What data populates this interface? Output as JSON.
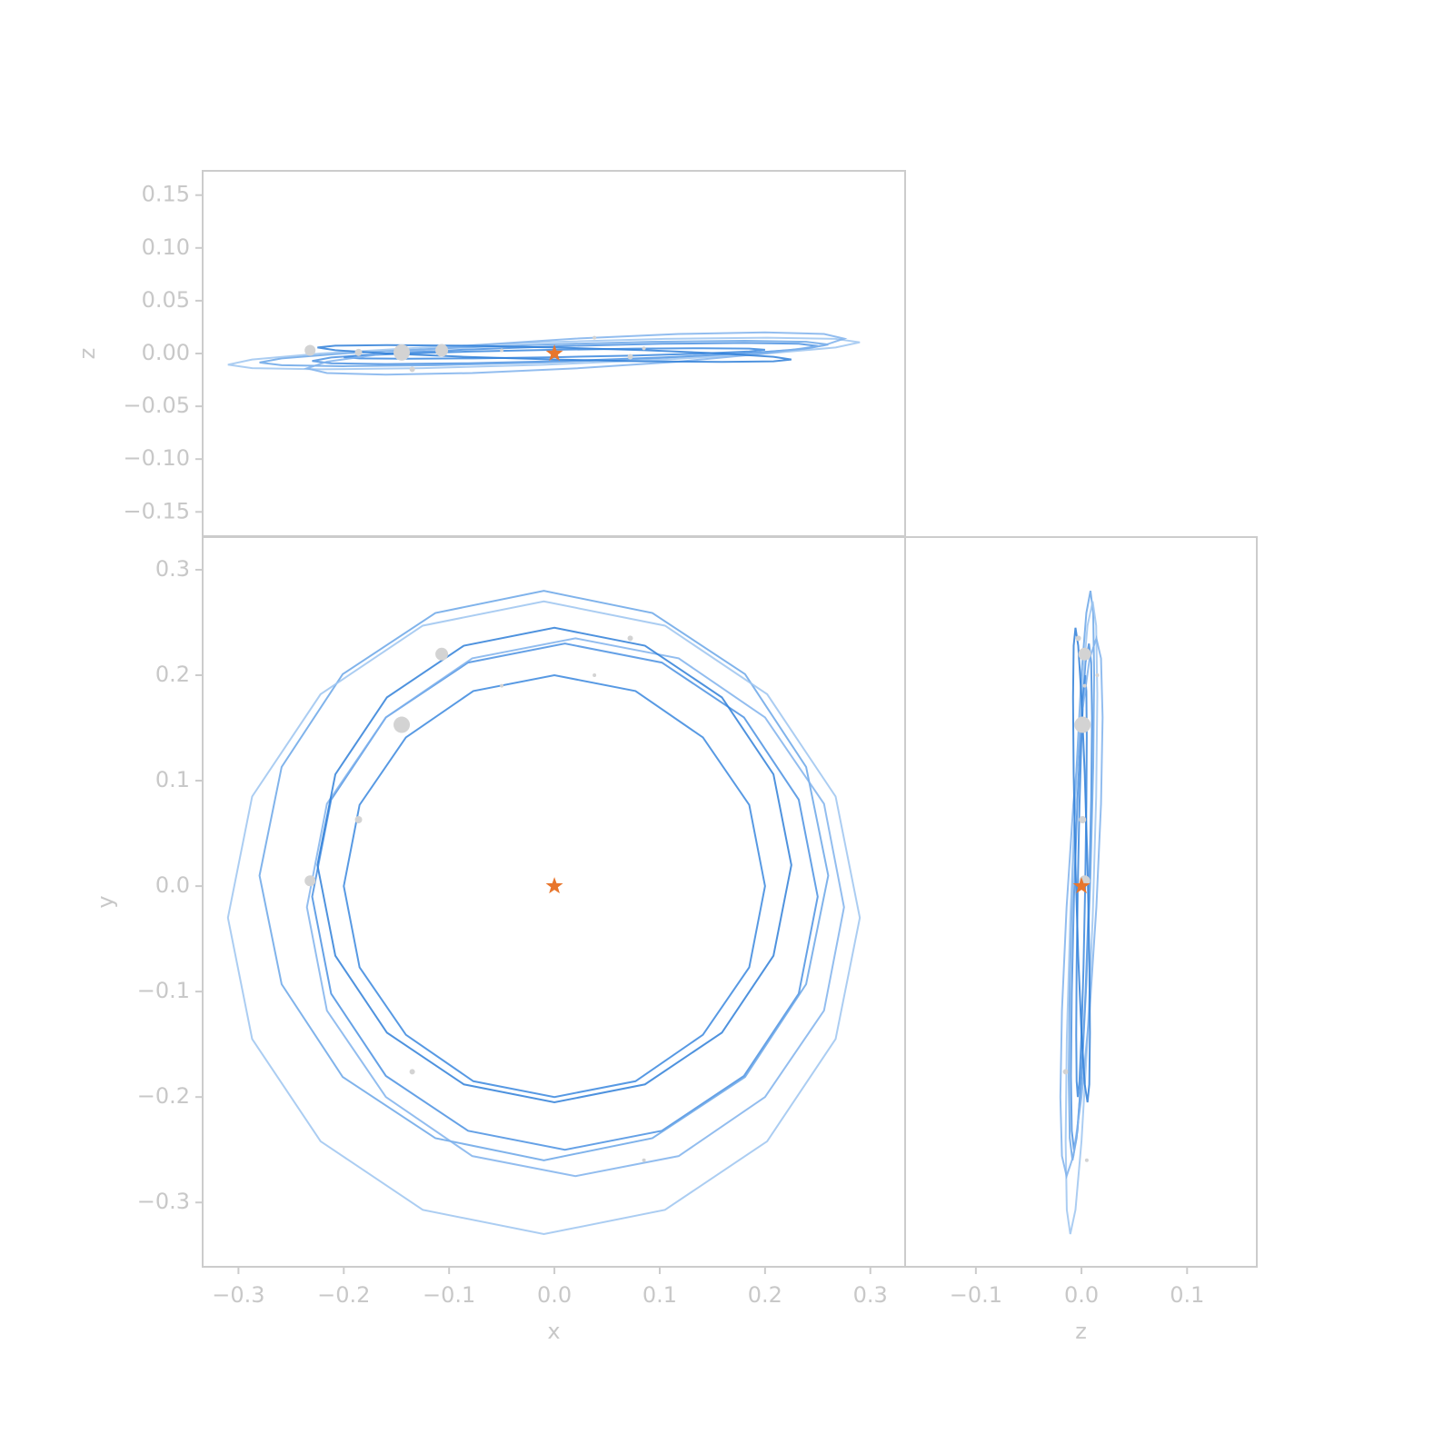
{
  "chart_data": {
    "type": "orbit",
    "series": [
      {
        "color": "#3a87de",
        "x": [
          0.2,
          0.185,
          0.141,
          0.077,
          0,
          -0.077,
          -0.141,
          -0.185,
          -0.2,
          -0.185,
          -0.141,
          -0.077,
          0,
          0.077,
          0.141,
          0.185
        ],
        "y": [
          0,
          0.077,
          0.141,
          0.185,
          0.2,
          0.185,
          0.141,
          0.077,
          0,
          -0.077,
          -0.141,
          -0.185,
          -0.2,
          -0.185,
          -0.141,
          -0.077
        ],
        "z": [
          0.0035,
          0.0046,
          0.005,
          0.0046,
          0.0035,
          0.0019,
          0,
          -0.0019,
          -0.0035,
          -0.0046,
          -0.005,
          -0.0046,
          -0.0035,
          -0.0019,
          0,
          0.0019
        ]
      },
      {
        "color": "#4a90e2",
        "x": [
          0.25,
          0.232,
          0.18,
          0.102,
          0.01,
          -0.082,
          -0.16,
          -0.212,
          -0.23,
          -0.212,
          -0.16,
          -0.082,
          0.01,
          0.102,
          0.18,
          0.232
        ],
        "y": [
          -0.01,
          0.082,
          0.16,
          0.212,
          0.23,
          0.212,
          0.16,
          0.082,
          -0.01,
          -0.102,
          -0.18,
          -0.232,
          -0.25,
          -0.232,
          -0.18,
          -0.102
        ],
        "z": [
          0.0071,
          0.0092,
          0.01,
          0.0092,
          0.0071,
          0.0038,
          0,
          -0.0038,
          -0.0071,
          -0.0092,
          -0.01,
          -0.0092,
          -0.0071,
          -0.0038,
          0,
          0.0038
        ]
      },
      {
        "color": "#6aa6e8",
        "x": [
          0.26,
          0.239,
          0.181,
          0.093,
          -0.01,
          -0.113,
          -0.201,
          -0.259,
          -0.28,
          -0.259,
          -0.201,
          -0.113,
          -0.01,
          0.093,
          0.181,
          0.239
        ],
        "y": [
          0.01,
          0.113,
          0.201,
          0.259,
          0.28,
          0.259,
          0.201,
          0.113,
          0.01,
          -0.093,
          -0.181,
          -0.239,
          -0.26,
          -0.239,
          -0.181,
          -0.093
        ],
        "z": [
          0.0085,
          0.0111,
          0.012,
          0.0111,
          0.0085,
          0.0046,
          0,
          -0.0046,
          -0.0085,
          -0.0111,
          -0.012,
          -0.0111,
          -0.0085,
          -0.0046,
          0,
          0.0046
        ]
      },
      {
        "color": "#9cc4f0",
        "x": [
          0.29,
          0.267,
          0.202,
          0.105,
          -0.01,
          -0.125,
          -0.222,
          -0.287,
          -0.31,
          -0.287,
          -0.222,
          -0.125,
          -0.01,
          0.105,
          0.202,
          0.267
        ],
        "y": [
          -0.03,
          0.085,
          0.182,
          0.247,
          0.27,
          0.247,
          0.182,
          0.085,
          -0.03,
          -0.145,
          -0.242,
          -0.307,
          -0.33,
          -0.307,
          -0.242,
          -0.145
        ],
        "z": [
          0.0106,
          0.0139,
          0.015,
          0.0139,
          0.0106,
          0.0057,
          0,
          -0.0057,
          -0.0106,
          -0.0139,
          -0.015,
          -0.0139,
          -0.0106,
          -0.0057,
          0,
          0.0057
        ]
      },
      {
        "color": "#7fb2ec",
        "x": [
          0.275,
          0.256,
          0.2,
          0.118,
          0.02,
          -0.078,
          -0.16,
          -0.216,
          -0.235,
          -0.216,
          -0.16,
          -0.078,
          0.02,
          0.118,
          0.2,
          0.256
        ],
        "y": [
          -0.02,
          0.078,
          0.16,
          0.216,
          0.235,
          0.216,
          0.16,
          0.078,
          -0.02,
          -0.118,
          -0.2,
          -0.256,
          -0.275,
          -0.256,
          -0.2,
          -0.118
        ],
        "z": [
          0.0141,
          0.0185,
          0.02,
          0.0185,
          0.0141,
          0.0077,
          0,
          -0.0077,
          -0.0141,
          -0.0185,
          -0.02,
          -0.0185,
          -0.0141,
          -0.0077,
          0,
          0.0077
        ]
      },
      {
        "color": "#2f7fd8",
        "x": [
          0.225,
          0.208,
          0.159,
          0.086,
          0,
          -0.086,
          -0.159,
          -0.208,
          -0.225,
          -0.208,
          -0.159,
          -0.086,
          0,
          0.086,
          0.159,
          0.208
        ],
        "y": [
          0.02,
          0.106,
          0.179,
          0.228,
          0.245,
          0.228,
          0.179,
          0.106,
          0.02,
          -0.066,
          -0.139,
          -0.188,
          -0.205,
          -0.188,
          -0.139,
          -0.066
        ],
        "z": [
          -0.0057,
          -0.0074,
          -0.008,
          -0.0074,
          -0.0057,
          -0.0031,
          0,
          0.0031,
          0.0057,
          0.0074,
          0.008,
          0.0074,
          0.0057,
          0.0031,
          0,
          -0.0031
        ]
      }
    ],
    "particles": {
      "color": "#d3d3d3",
      "x": [
        -0.145,
        -0.107,
        -0.232,
        -0.186,
        -0.135,
        0.072,
        0.038,
        0.085,
        -0.05
      ],
      "y": [
        0.153,
        0.22,
        0.005,
        0.063,
        -0.176,
        0.235,
        0.2,
        -0.26,
        0.19
      ],
      "z": [
        0.001,
        0.003,
        0.003,
        0.001,
        -0.015,
        -0.003,
        0.015,
        0.005,
        0.003
      ],
      "sizes": [
        9,
        7,
        6,
        4,
        3,
        3,
        2,
        2,
        2
      ]
    },
    "star": {
      "color": "#e8762d",
      "x": 0,
      "y": 0,
      "z": 0
    },
    "panels": [
      {
        "xaxis": "x",
        "yaxis": "z",
        "ylabel": "z",
        "xlim": [
          -0.334,
          0.333
        ],
        "ylim": [
          -0.173,
          0.173
        ],
        "yticks": [
          {
            "value": -0.15,
            "label": "−0.15"
          },
          {
            "value": -0.1,
            "label": "−0.10"
          },
          {
            "value": -0.05,
            "label": "−0.05"
          },
          {
            "value": 0,
            "label": "0.00"
          },
          {
            "value": 0.05,
            "label": "0.05"
          },
          {
            "value": 0.1,
            "label": "0.10"
          },
          {
            "value": 0.15,
            "label": "0.15"
          }
        ]
      },
      {
        "xaxis": "x",
        "yaxis": "y",
        "xlabel": "x",
        "ylabel": "y",
        "xlim": [
          -0.334,
          0.333
        ],
        "ylim": [
          -0.361,
          0.331
        ],
        "xticks": [
          {
            "value": -0.3,
            "label": "−0.3"
          },
          {
            "value": -0.2,
            "label": "−0.2"
          },
          {
            "value": -0.1,
            "label": "−0.1"
          },
          {
            "value": 0,
            "label": "0.0"
          },
          {
            "value": 0.1,
            "label": "0.1"
          },
          {
            "value": 0.2,
            "label": "0.2"
          },
          {
            "value": 0.3,
            "label": "0.3"
          }
        ],
        "yticks": [
          {
            "value": -0.3,
            "label": "−0.3"
          },
          {
            "value": -0.2,
            "label": "−0.2"
          },
          {
            "value": -0.1,
            "label": "−0.1"
          },
          {
            "value": 0,
            "label": "0.0"
          },
          {
            "value": 0.1,
            "label": "0.1"
          },
          {
            "value": 0.2,
            "label": "0.2"
          },
          {
            "value": 0.3,
            "label": "0.3"
          }
        ]
      },
      {
        "xaxis": "z",
        "yaxis": "y",
        "xlabel": "z",
        "xlim": [
          -0.167,
          0.166
        ],
        "ylim": [
          -0.361,
          0.331
        ],
        "xticks": [
          {
            "value": -0.1,
            "label": "−0.1"
          },
          {
            "value": 0,
            "label": "0.0"
          },
          {
            "value": 0.1,
            "label": "0.1"
          }
        ]
      }
    ]
  }
}
